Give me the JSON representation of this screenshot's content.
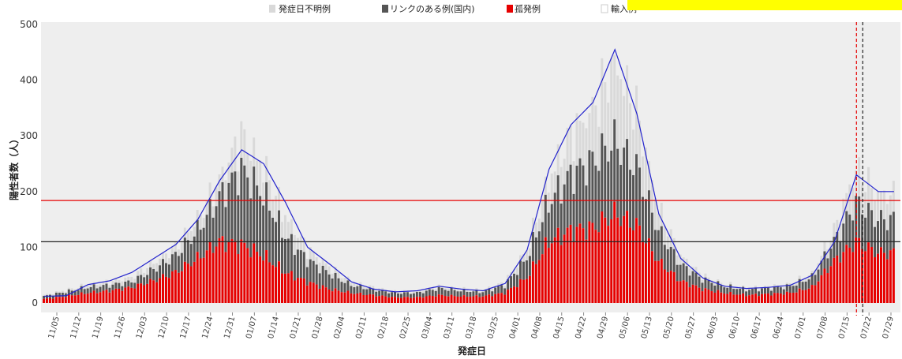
{
  "header": {
    "left_fragment": "",
    "banner_text": ""
  },
  "chart_data": {
    "type": "bar",
    "stacked": true,
    "xlabel": "発症日",
    "ylabel": "陽性者数（人）",
    "ylim": [
      0,
      500
    ],
    "yticks": [
      0,
      100,
      200,
      300,
      400,
      500
    ],
    "grid": false,
    "legend_position": "top",
    "legend": [
      {
        "name": "発症日不明例",
        "color": "#d9d9d9"
      },
      {
        "name": "リンクのある例(国内)",
        "color": "#555555"
      },
      {
        "name": "孤発例",
        "color": "#e60000"
      },
      {
        "name": "輸入例",
        "color": "#ffffff"
      }
    ],
    "x_ticks": [
      "11/05",
      "11/12",
      "11/19",
      "11/26",
      "12/03",
      "12/10",
      "12/17",
      "12/24",
      "12/31",
      "01/07",
      "01/14",
      "01/21",
      "01/28",
      "02/04",
      "02/11",
      "02/18",
      "02/25",
      "03/04",
      "03/11",
      "03/18",
      "03/25",
      "04/01",
      "04/08",
      "04/15",
      "04/22",
      "04/29",
      "05/06",
      "05/13",
      "05/20",
      "05/27",
      "06/03",
      "06/10",
      "06/17",
      "06/24",
      "07/01",
      "07/08",
      "07/15",
      "07/22",
      "07/29"
    ],
    "series": [
      {
        "name": "孤発例",
        "color": "#e60000",
        "weekly_values": [
          7,
          12,
          18,
          22,
          28,
          40,
          55,
          80,
          110,
          105,
          85,
          55,
          38,
          25,
          18,
          14,
          10,
          10,
          14,
          12,
          12,
          18,
          45,
          110,
          130,
          135,
          160,
          140,
          75,
          40,
          25,
          18,
          14,
          16,
          18,
          28,
          75,
          110,
          90
        ]
      },
      {
        "name": "リンクのある例(国内)",
        "color": "#555555",
        "weekly_values": [
          5,
          8,
          10,
          10,
          10,
          20,
          30,
          50,
          80,
          135,
          110,
          65,
          40,
          28,
          14,
          10,
          8,
          8,
          12,
          10,
          8,
          14,
          35,
          70,
          100,
          120,
          130,
          105,
          55,
          30,
          18,
          12,
          10,
          10,
          12,
          18,
          35,
          70,
          60
        ]
      },
      {
        "name": "発症日不明例",
        "color": "#d9d9d9",
        "weekly_values": [
          2,
          3,
          4,
          6,
          8,
          12,
          15,
          20,
          30,
          60,
          50,
          35,
          20,
          12,
          6,
          4,
          3,
          3,
          4,
          3,
          3,
          5,
          15,
          40,
          70,
          90,
          140,
          100,
          40,
          15,
          6,
          4,
          3,
          3,
          4,
          6,
          20,
          60,
          45
        ]
      }
    ],
    "moving_average": {
      "color": "#2222cc",
      "weekly_values": [
        12,
        13,
        33,
        40,
        55,
        80,
        105,
        150,
        220,
        275,
        250,
        180,
        100,
        70,
        38,
        25,
        20,
        22,
        30,
        25,
        22,
        35,
        95,
        240,
        320,
        360,
        455,
        340,
        160,
        80,
        45,
        30,
        26,
        28,
        32,
        50,
        110,
        230,
        200
      ]
    },
    "reference_lines": [
      {
        "value": 184,
        "color": "#e60000"
      },
      {
        "value": 110,
        "color": "#222222"
      }
    ],
    "vertical_markers": [
      {
        "date": "07/18",
        "color": "#e60000",
        "style": "dashed"
      },
      {
        "date": "07/20",
        "color": "#222222",
        "style": "dashed"
      }
    ]
  }
}
